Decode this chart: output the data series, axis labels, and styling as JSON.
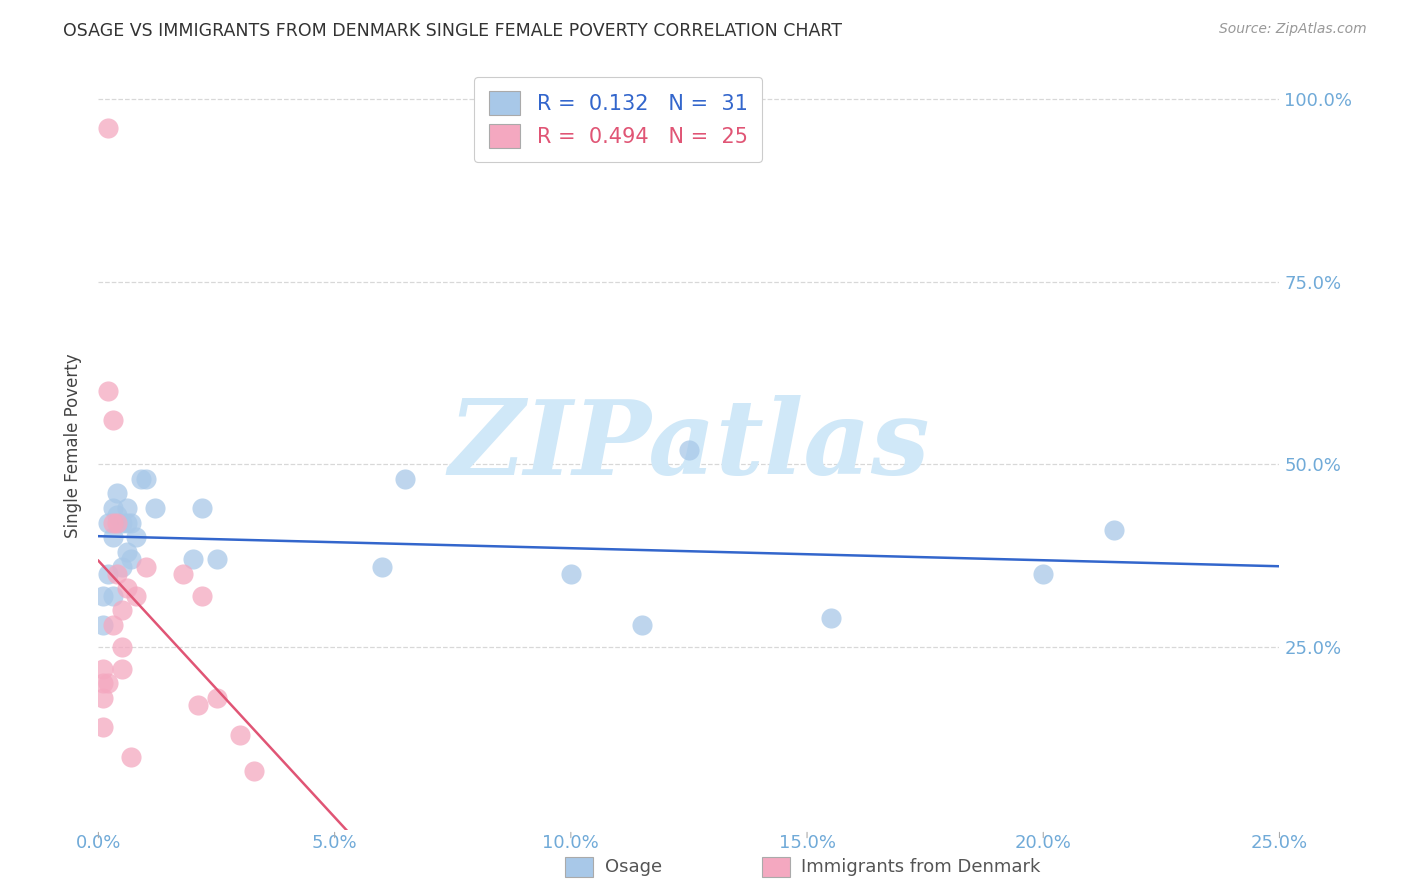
{
  "title": "OSAGE VS IMMIGRANTS FROM DENMARK SINGLE FEMALE POVERTY CORRELATION CHART",
  "source": "Source: ZipAtlas.com",
  "ylabel": "Single Female Poverty",
  "xlim": [
    0.0,
    0.25
  ],
  "ylim": [
    0.0,
    1.05
  ],
  "xticks": [
    0.0,
    0.05,
    0.1,
    0.15,
    0.2,
    0.25
  ],
  "yticks": [
    0.25,
    0.5,
    0.75,
    1.0
  ],
  "ytick_labels": [
    "25.0%",
    "50.0%",
    "75.0%",
    "100.0%"
  ],
  "xtick_labels": [
    "0.0%",
    "5.0%",
    "10.0%",
    "15.0%",
    "20.0%",
    "25.0%"
  ],
  "legend_blue_R": "0.132",
  "legend_blue_N": "31",
  "legend_pink_R": "0.494",
  "legend_pink_N": "25",
  "series1_label": "Osage",
  "series2_label": "Immigrants from Denmark",
  "series1_color": "#a8c8e8",
  "series2_color": "#f4a8c0",
  "trendline1_color": "#3366cc",
  "trendline2_color": "#e05575",
  "watermark_color": "#d0e8f8",
  "background_color": "#ffffff",
  "grid_color": "#d8d8d8",
  "axis_label_color": "#70aad8",
  "title_color": "#333333",
  "osage_x": [
    0.001,
    0.001,
    0.002,
    0.002,
    0.003,
    0.003,
    0.003,
    0.004,
    0.004,
    0.005,
    0.005,
    0.006,
    0.006,
    0.006,
    0.007,
    0.007,
    0.008,
    0.009,
    0.01,
    0.012,
    0.02,
    0.022,
    0.025,
    0.06,
    0.065,
    0.1,
    0.115,
    0.125,
    0.155,
    0.2,
    0.215
  ],
  "osage_y": [
    0.32,
    0.28,
    0.35,
    0.42,
    0.32,
    0.4,
    0.44,
    0.43,
    0.46,
    0.36,
    0.42,
    0.44,
    0.42,
    0.38,
    0.42,
    0.37,
    0.4,
    0.48,
    0.48,
    0.44,
    0.37,
    0.44,
    0.37,
    0.36,
    0.48,
    0.35,
    0.28,
    0.52,
    0.29,
    0.35,
    0.41
  ],
  "denmark_x": [
    0.001,
    0.001,
    0.001,
    0.001,
    0.002,
    0.002,
    0.002,
    0.003,
    0.003,
    0.003,
    0.004,
    0.004,
    0.005,
    0.005,
    0.005,
    0.006,
    0.007,
    0.008,
    0.01,
    0.018,
    0.021,
    0.022,
    0.025,
    0.03,
    0.033
  ],
  "denmark_y": [
    0.2,
    0.18,
    0.22,
    0.14,
    0.2,
    0.6,
    0.96,
    0.56,
    0.42,
    0.28,
    0.42,
    0.35,
    0.3,
    0.25,
    0.22,
    0.33,
    0.1,
    0.32,
    0.36,
    0.35,
    0.17,
    0.32,
    0.18,
    0.13,
    0.08
  ]
}
